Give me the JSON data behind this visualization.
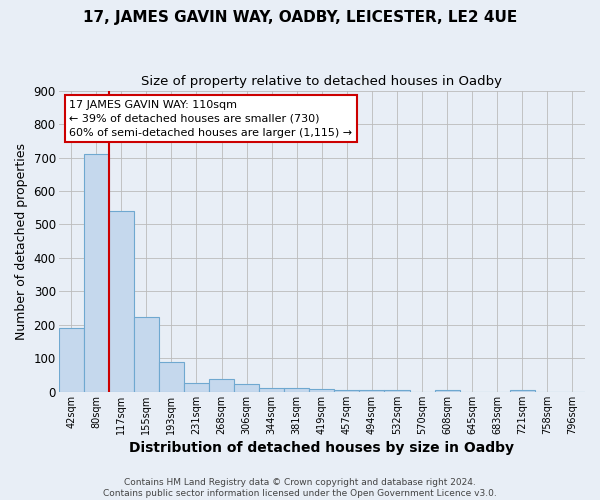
{
  "title": "17, JAMES GAVIN WAY, OADBY, LEICESTER, LE2 4UE",
  "subtitle": "Size of property relative to detached houses in Oadby",
  "xlabel": "Distribution of detached houses by size in Oadby",
  "ylabel": "Number of detached properties",
  "footer_line1": "Contains HM Land Registry data © Crown copyright and database right 2024.",
  "footer_line2": "Contains public sector information licensed under the Open Government Licence v3.0.",
  "bar_labels": [
    "42sqm",
    "80sqm",
    "117sqm",
    "155sqm",
    "193sqm",
    "231sqm",
    "268sqm",
    "306sqm",
    "344sqm",
    "381sqm",
    "419sqm",
    "457sqm",
    "494sqm",
    "532sqm",
    "570sqm",
    "608sqm",
    "645sqm",
    "683sqm",
    "721sqm",
    "758sqm",
    "796sqm"
  ],
  "bar_values": [
    190,
    710,
    540,
    225,
    90,
    28,
    38,
    25,
    13,
    12,
    10,
    5,
    5,
    5,
    0,
    5,
    0,
    0,
    7,
    0,
    0
  ],
  "bar_color": "#c5d8ed",
  "bar_edge_color": "#6fa8d0",
  "vline_color": "#cc0000",
  "ylim_max": 900,
  "yticks": [
    0,
    100,
    200,
    300,
    400,
    500,
    600,
    700,
    800,
    900
  ],
  "annotation_line1": "17 JAMES GAVIN WAY: 110sqm",
  "annotation_line2": "← 39% of detached houses are smaller (730)",
  "annotation_line3": "60% of semi-detached houses are larger (1,115) →",
  "annotation_box_facecolor": "#ffffff",
  "annotation_box_edgecolor": "#cc0000",
  "background_color": "#e8eef6",
  "grid_color": "#bbbbbb",
  "title_fontsize": 11,
  "subtitle_fontsize": 9.5,
  "xlabel_fontsize": 10,
  "ylabel_fontsize": 9,
  "footer_fontsize": 6.5
}
